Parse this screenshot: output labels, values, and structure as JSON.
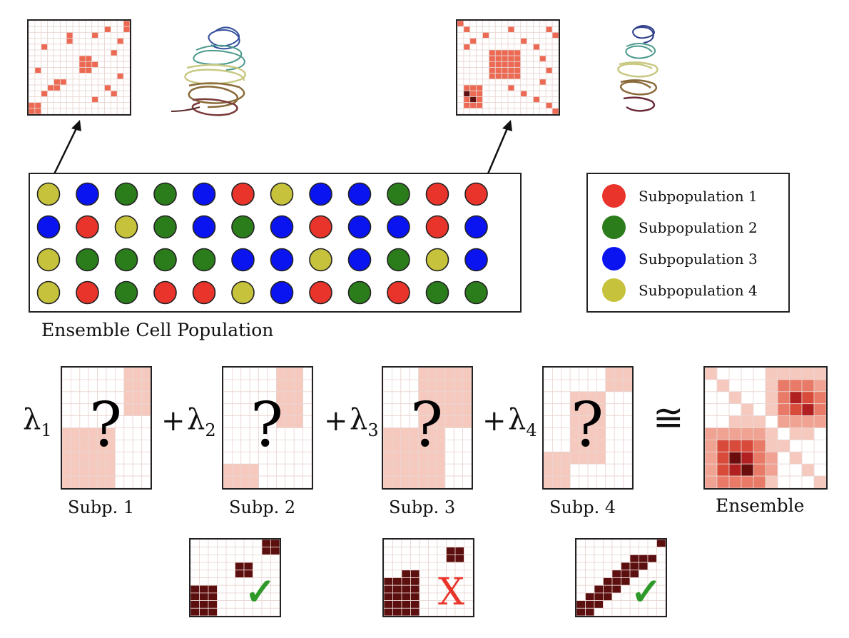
{
  "population": {
    "label": "Ensemble Cell Population",
    "rows": [
      [
        4,
        3,
        2,
        2,
        3,
        1,
        4,
        3,
        3,
        2,
        1,
        1
      ],
      [
        3,
        1,
        4,
        2,
        3,
        2,
        3,
        1,
        3,
        3,
        1,
        3
      ],
      [
        4,
        2,
        2,
        2,
        2,
        3,
        3,
        4,
        3,
        2,
        4,
        3
      ],
      [
        4,
        1,
        2,
        1,
        1,
        4,
        3,
        1,
        2,
        1,
        2,
        2
      ]
    ]
  },
  "legend": [
    {
      "id": 1,
      "label": "Subpopulation 1",
      "color": "#e8342a"
    },
    {
      "id": 2,
      "label": "Subpopulation 2",
      "color": "#2b7d1c"
    },
    {
      "id": 3,
      "label": "Subpopulation 3",
      "color": "#0a14f0"
    },
    {
      "id": 4,
      "label": "Subpopulation 4",
      "color": "#c6c23c"
    }
  ],
  "equation": {
    "terms": [
      {
        "symbol": "λ",
        "index": "1",
        "prefix": "",
        "mark": "?",
        "caption": "Subp. 1"
      },
      {
        "symbol": "λ",
        "index": "2",
        "prefix": "+",
        "mark": "?",
        "caption": "Subp. 2"
      },
      {
        "symbol": "λ",
        "index": "3",
        "prefix": "+",
        "mark": "?",
        "caption": "Subp. 3"
      },
      {
        "symbol": "λ",
        "index": "4",
        "prefix": "+",
        "mark": "?",
        "caption": "Subp. 4"
      }
    ],
    "relation": "≅",
    "result_caption": "Ensemble"
  },
  "validation": [
    {
      "mark": "✓",
      "color": "#2f9a2a"
    },
    {
      "mark": "X",
      "color": "#e8342a"
    },
    {
      "mark": "✓",
      "color": "#2f9a2a"
    }
  ],
  "colors": {
    "heat_light": "#f6c9bf",
    "heat_mid": "#ec6a54",
    "heat_dark": "#5c0f0f",
    "grid": "#e9d6d2"
  }
}
